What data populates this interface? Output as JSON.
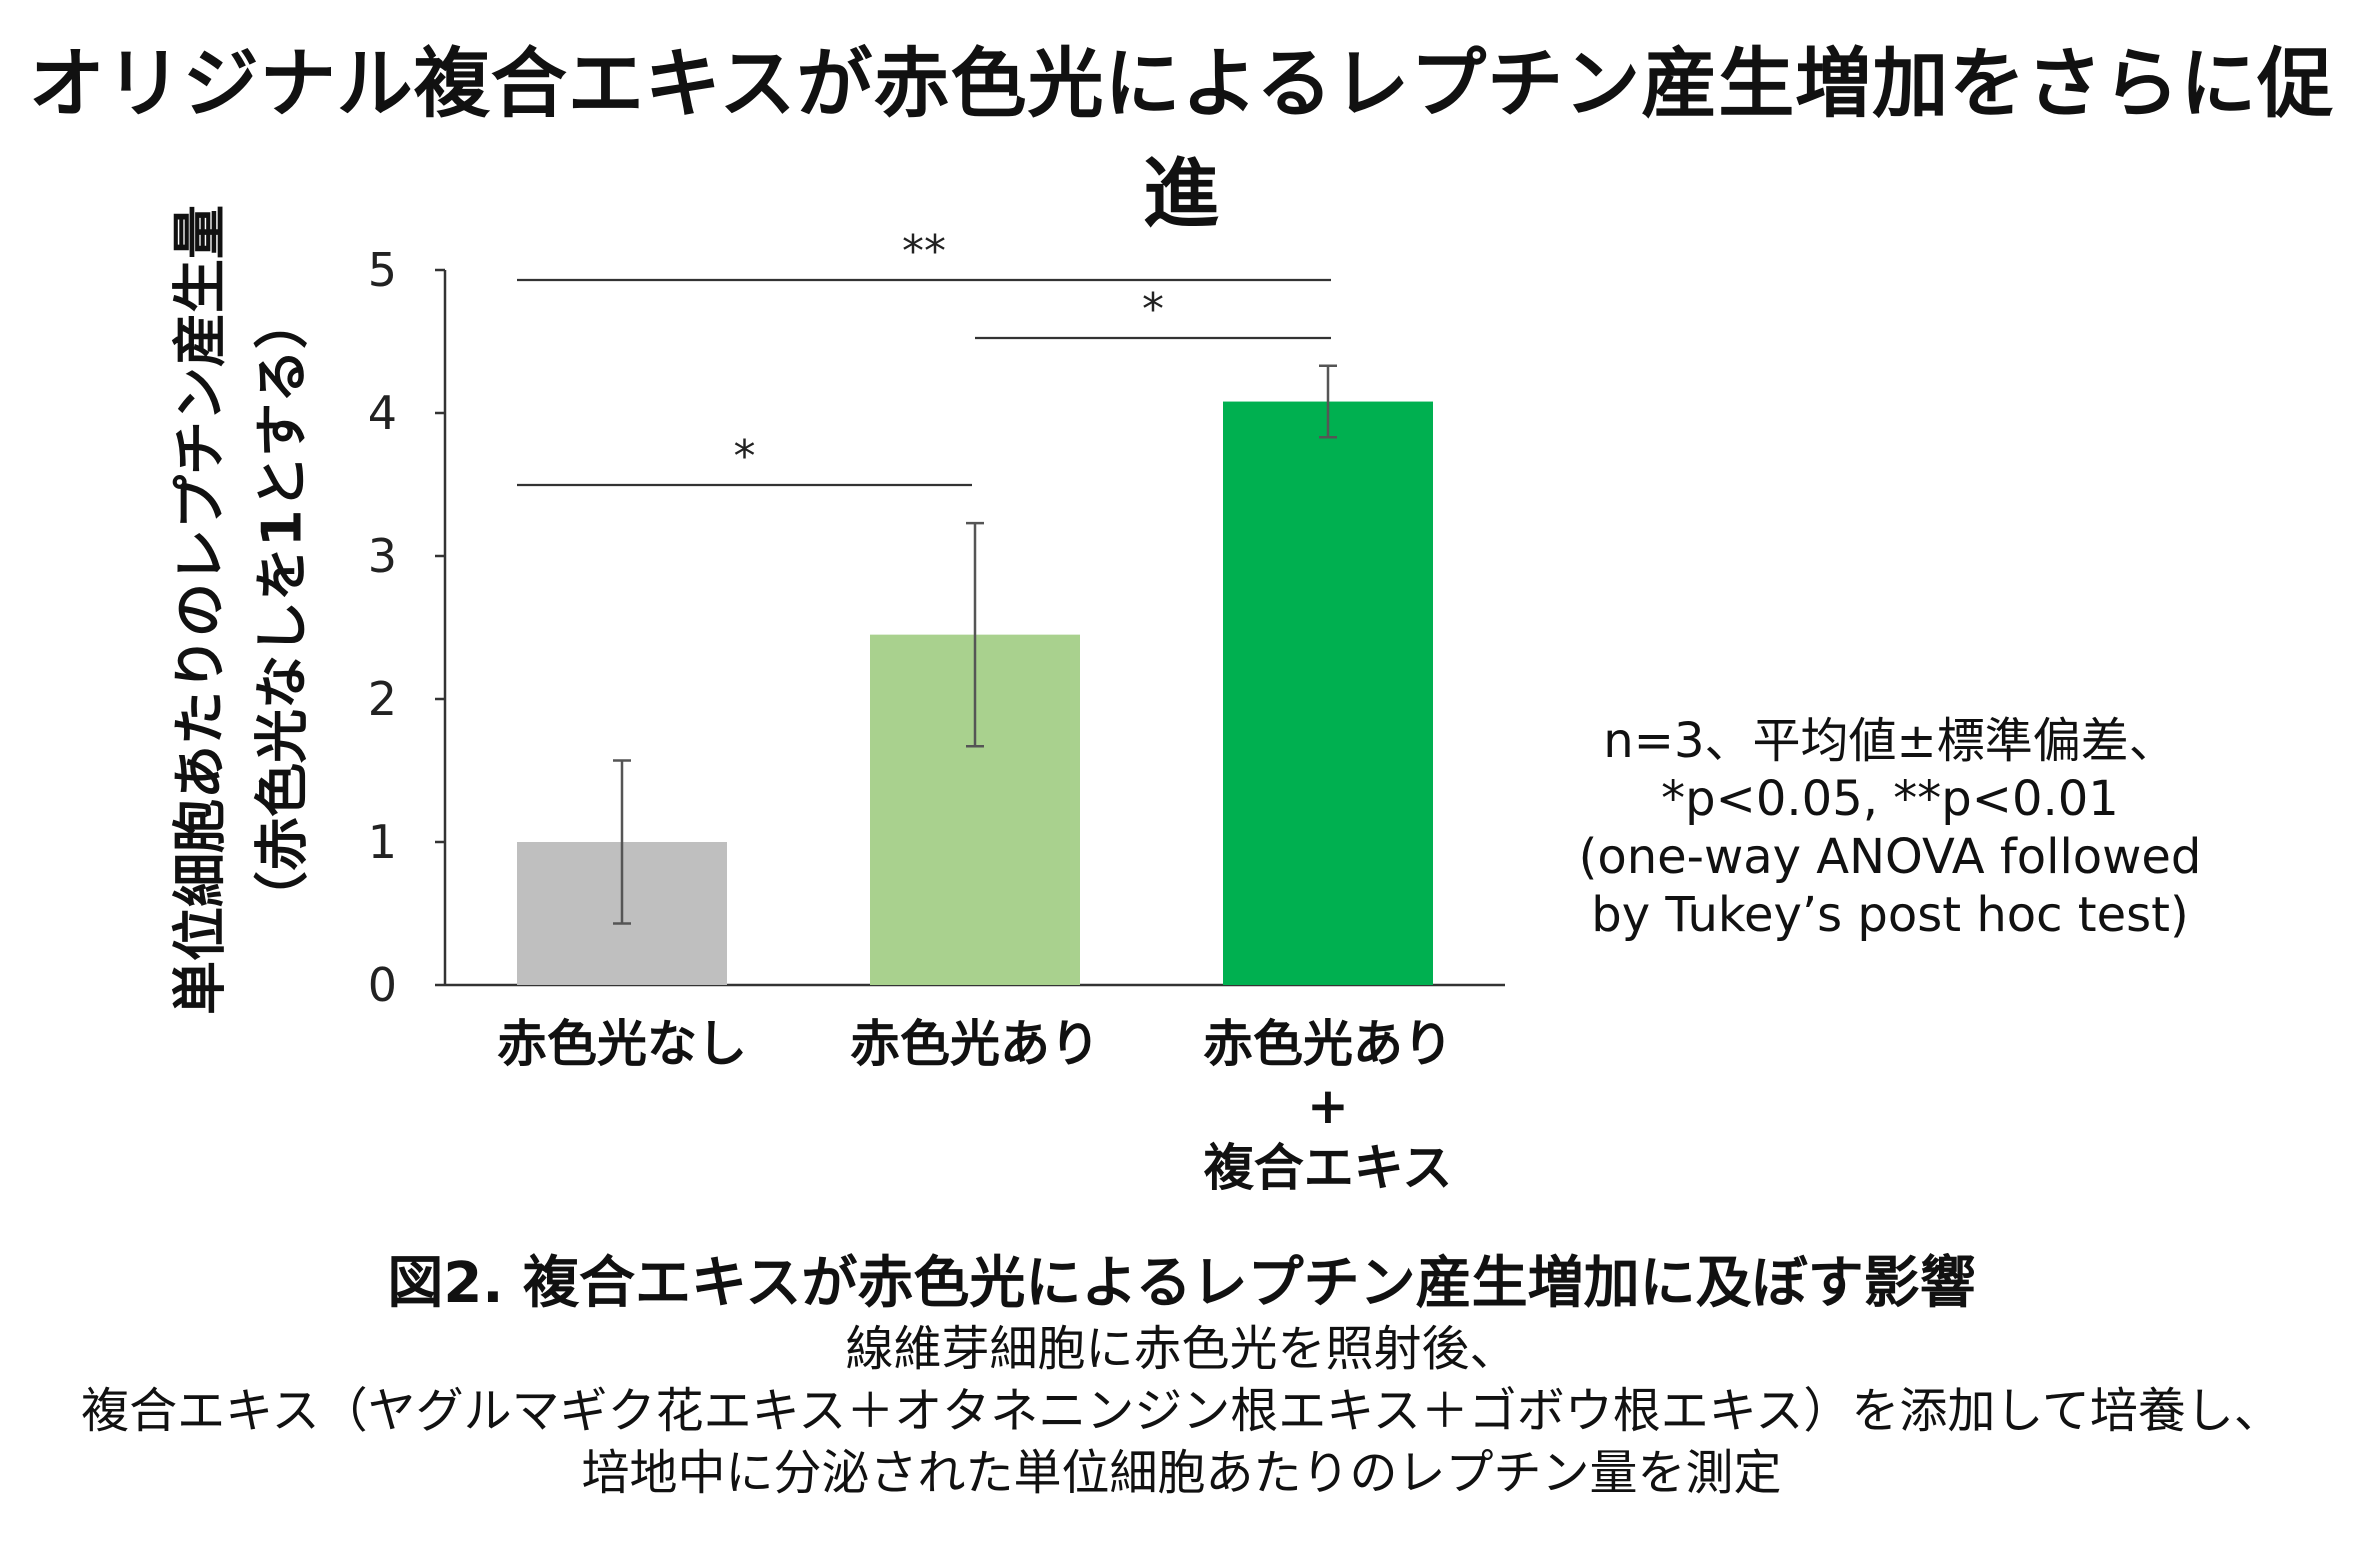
{
  "title": "オリジナル複合エキスが赤色光によるレプチン産生増加をさらに促進",
  "chart_data": {
    "type": "bar",
    "categories": [
      "赤色光なし",
      "赤色光あり",
      "赤色光あり\n+\n複合エキス"
    ],
    "values": [
      1.0,
      2.45,
      4.08
    ],
    "error": [
      0.57,
      0.78,
      0.25
    ],
    "colors": [
      "#bfbfbf",
      "#a9d18e",
      "#00b050"
    ],
    "ylabel_lines": [
      "単位細胞あたりのレプチン産生量",
      "（赤色光なしを1とする）"
    ],
    "xlabel": "",
    "ylim": [
      0,
      5
    ],
    "yticks": [
      "0",
      "1",
      "2",
      "3",
      "4",
      "5"
    ],
    "grid": false,
    "significance": [
      {
        "from": 0,
        "to": 1,
        "label": "*"
      },
      {
        "from": 1,
        "to": 2,
        "label": "*"
      },
      {
        "from": 0,
        "to": 2,
        "label": "**"
      }
    ]
  },
  "note": {
    "lines": [
      "n=3、平均値±標準偏差、",
      "*p<0.05, **p<0.01",
      "(one-way ANOVA followed",
      "by Tukey’s post hoc test)"
    ]
  },
  "caption": {
    "title": "図2. 複合エキスが赤色光によるレプチン産生増加に及ぼす影響",
    "lines": [
      "線維芽細胞に赤色光を照射後、",
      "複合エキス（ヤグルマギク花エキス＋オタネニンジン根エキス＋ゴボウ根エキス）を添加して培養し、",
      "培地中に分泌された単位細胞あたりのレプチン量を測定"
    ]
  }
}
